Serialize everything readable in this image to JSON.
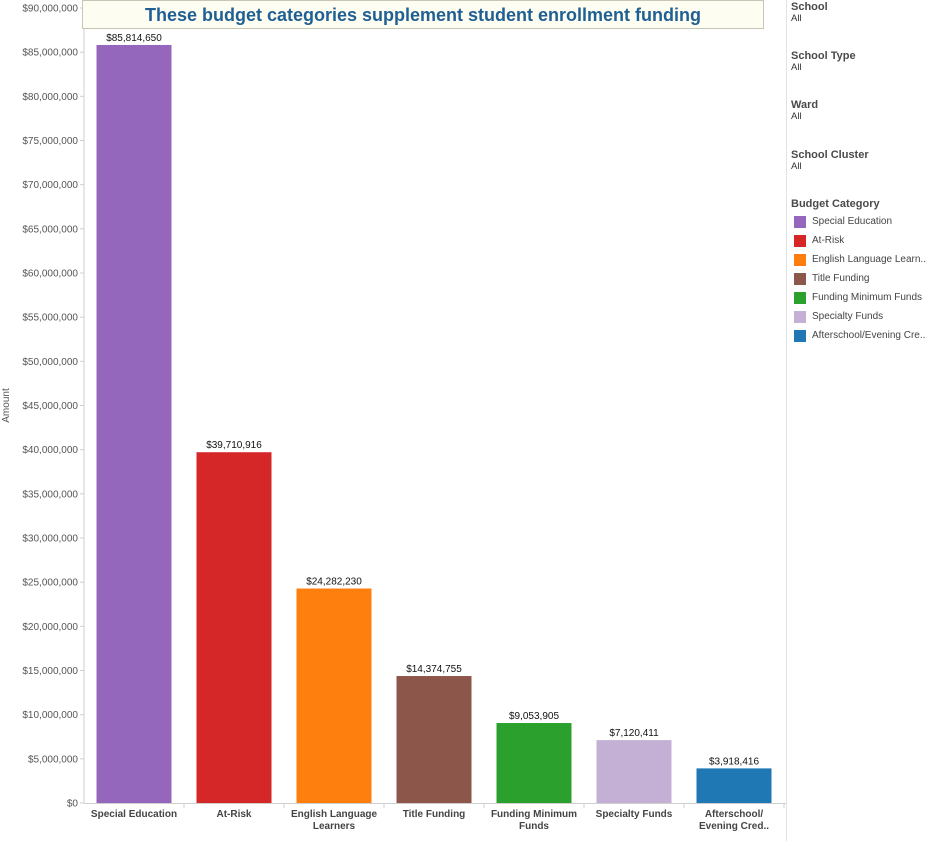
{
  "title": "These budget categories supplement student enrollment funding",
  "filters": [
    {
      "label": "School",
      "value": "All"
    },
    {
      "label": "School Type",
      "value": "All"
    },
    {
      "label": "Ward",
      "value": "All"
    },
    {
      "label": "School Cluster",
      "value": "All"
    }
  ],
  "legend": {
    "title": "Budget Category",
    "items": [
      {
        "label": "Special Education",
        "color": "#9467bd"
      },
      {
        "label": "At-Risk",
        "color": "#d62728"
      },
      {
        "label": "English Language Learn..",
        "color": "#ff7f0e"
      },
      {
        "label": "Title Funding",
        "color": "#8c564b"
      },
      {
        "label": "Funding Minimum Funds",
        "color": "#2ca02c"
      },
      {
        "label": "Specialty Funds",
        "color": "#c5b0d5"
      },
      {
        "label": "Afterschool/Evening Cre..",
        "color": "#1f77b4"
      }
    ]
  },
  "chart_data": {
    "type": "bar",
    "title": "These budget categories supplement student enrollment funding",
    "xlabel": "",
    "ylabel": "Amount",
    "ylim": [
      0,
      90000000
    ],
    "yticks": [
      0,
      5000000,
      10000000,
      15000000,
      20000000,
      25000000,
      30000000,
      35000000,
      40000000,
      45000000,
      50000000,
      55000000,
      60000000,
      65000000,
      70000000,
      75000000,
      80000000,
      85000000,
      90000000
    ],
    "ytick_labels": [
      "$0",
      "$5,000,000",
      "$10,000,000",
      "$15,000,000",
      "$20,000,000",
      "$25,000,000",
      "$30,000,000",
      "$35,000,000",
      "$40,000,000",
      "$45,000,000",
      "$50,000,000",
      "$55,000,000",
      "$60,000,000",
      "$65,000,000",
      "$70,000,000",
      "$75,000,000",
      "$80,000,000",
      "$85,000,000",
      "$90,000,000"
    ],
    "categories": [
      [
        "Special Education"
      ],
      [
        "At-Risk"
      ],
      [
        "English Language",
        "Learners"
      ],
      [
        "Title Funding"
      ],
      [
        "Funding Minimum",
        "Funds"
      ],
      [
        "Specialty Funds"
      ],
      [
        "Afterschool/",
        "Evening Cred.."
      ]
    ],
    "values": [
      85814650,
      39710916,
      24282230,
      14374755,
      9053905,
      7120411,
      3918416
    ],
    "value_labels": [
      "$85,814,650",
      "$39,710,916",
      "$24,282,230",
      "$14,374,755",
      "$9,053,905",
      "$7,120,411",
      "$3,918,416"
    ],
    "colors": [
      "#9467bd",
      "#d62728",
      "#ff7f0e",
      "#8c564b",
      "#2ca02c",
      "#c5b0d5",
      "#1f77b4"
    ],
    "grid": false,
    "legend_position": "right"
  }
}
